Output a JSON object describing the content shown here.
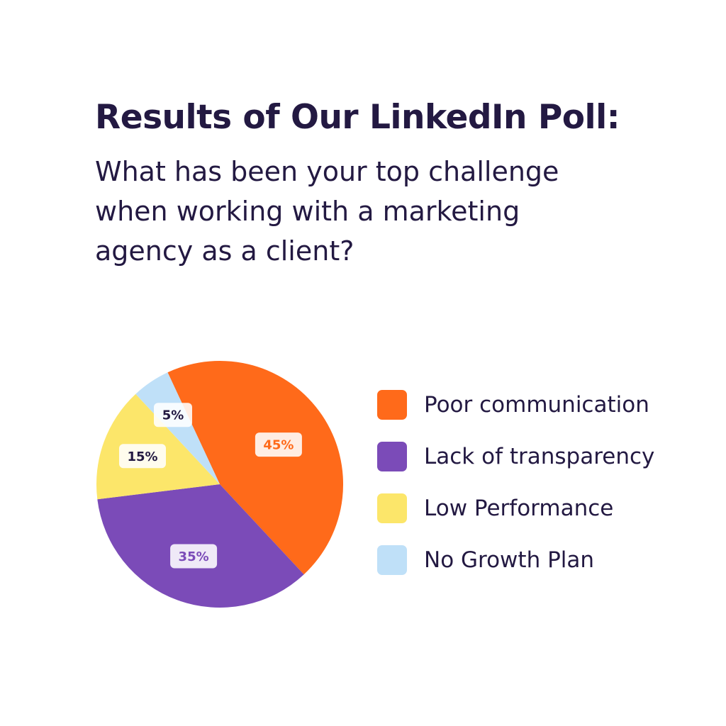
{
  "header": {
    "title": "Results of Our LinkedIn Poll:",
    "subtitle_lines": [
      "What has been your top challenge",
      "when working with a marketing",
      "agency as a client?"
    ]
  },
  "chart_data": {
    "type": "pie",
    "title": "Results of Our LinkedIn Poll:",
    "categories": [
      "Poor communication",
      "Lack of transparency",
      "Low Performance",
      "No Growth Plan"
    ],
    "values": [
      45,
      35,
      15,
      5
    ],
    "labels": [
      "45%",
      "35%",
      "15%",
      "5%"
    ],
    "colors": [
      "#FF6A1A",
      "#7B4BB8",
      "#FCE66A",
      "#BFE0F8"
    ],
    "label_colors": [
      "#FF6A1A",
      "#7B4BB8",
      "#231942",
      "#231942"
    ],
    "start_angle_deg": -25,
    "direction": "clockwise",
    "legend_position": "right"
  }
}
